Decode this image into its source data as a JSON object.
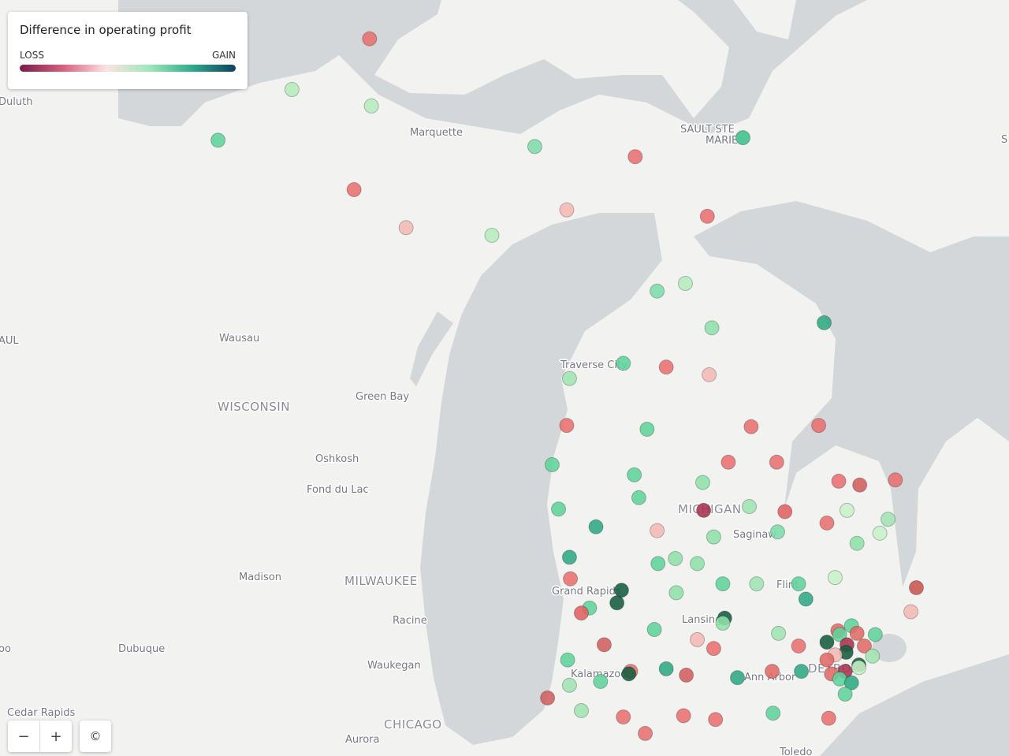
{
  "legend": {
    "title": "Difference in operating profit",
    "low": "LOSS",
    "high": "GAIN"
  },
  "controls": {
    "zoom_out": "−",
    "zoom_in": "+",
    "attribution": "©"
  },
  "labels": [
    "Duluth",
    "Marquette",
    "SAULT STE",
    "MARIE",
    "Wausau",
    "WISCONSIN",
    "Green Bay",
    "Oshkosh",
    "Fond du Lac",
    "Madison",
    "MILWAUKEE",
    "Racine",
    "Dubuque",
    "Waukegan",
    "CHICAGO",
    "Aurora",
    "Cedar Rapids",
    "Toledo",
    "Traverse City",
    "MICHIGAN",
    "Saginaw",
    "Flint",
    "Grand Rapids",
    "Lansing",
    "Kalamazoo",
    "Ann Arbor",
    "DETROIT",
    "AUL",
    "oo",
    "S"
  ],
  "markers": [
    [
      -88.44,
      47.27,
      "#e8706e"
    ],
    [
      -89.29,
      46.87,
      "#b4ecbc"
    ],
    [
      -88.42,
      46.74,
      "#b4ecbc"
    ],
    [
      -90.1,
      46.47,
      "#5fd39a"
    ],
    [
      -88.61,
      46.08,
      "#e8706e"
    ],
    [
      -88.04,
      45.78,
      "#f4b8b4"
    ],
    [
      -87.1,
      45.72,
      "#b4ecbc"
    ],
    [
      -86.63,
      46.42,
      "#7ddcaa"
    ],
    [
      -86.28,
      45.92,
      "#f4b8b4"
    ],
    [
      -85.53,
      46.34,
      "#e8706e"
    ],
    [
      -84.35,
      46.49,
      "#3cc08a"
    ],
    [
      -84.74,
      45.87,
      "#e8706e"
    ],
    [
      -85.29,
      45.28,
      "#7ddcaa"
    ],
    [
      -84.98,
      45.34,
      "#b4ecbc"
    ],
    [
      -84.69,
      44.99,
      "#8fe0a8"
    ],
    [
      -83.46,
      45.03,
      "#2fa884"
    ],
    [
      -85.66,
      44.71,
      "#5fd39a"
    ],
    [
      -85.19,
      44.68,
      "#e8706e"
    ],
    [
      -84.72,
      44.62,
      "#f4b8b4"
    ],
    [
      -86.25,
      44.59,
      "#9fe4b0"
    ],
    [
      -86.28,
      44.22,
      "#e8706e"
    ],
    [
      -85.4,
      44.19,
      "#5fd39a"
    ],
    [
      -84.26,
      44.21,
      "#e8706e"
    ],
    [
      -83.52,
      44.22,
      "#e8706e"
    ],
    [
      -86.44,
      43.91,
      "#5fd39a"
    ],
    [
      -85.54,
      43.83,
      "#5fd39a"
    ],
    [
      -84.51,
      43.93,
      "#e8706e"
    ],
    [
      -83.98,
      43.93,
      "#e8706e"
    ],
    [
      -84.79,
      43.77,
      "#8fe0a8"
    ],
    [
      -85.49,
      43.65,
      "#5fd39a"
    ],
    [
      -83.3,
      43.78,
      "#e8706e"
    ],
    [
      -83.07,
      43.75,
      "#d0605e"
    ],
    [
      -82.68,
      43.79,
      "#e8706e"
    ],
    [
      -86.37,
      43.56,
      "#5fd39a"
    ],
    [
      -84.78,
      43.55,
      "#a8324e"
    ],
    [
      -84.28,
      43.58,
      "#9fe4b0"
    ],
    [
      -83.89,
      43.54,
      "#e0605e"
    ],
    [
      -83.21,
      43.55,
      "#c8f0c8"
    ],
    [
      -85.96,
      43.42,
      "#2fa884"
    ],
    [
      -85.29,
      43.39,
      "#f4b8b4"
    ],
    [
      -84.67,
      43.34,
      "#8fe0a8"
    ],
    [
      -83.97,
      43.38,
      "#7ddcaa"
    ],
    [
      -83.43,
      43.45,
      "#e8706e"
    ],
    [
      -82.76,
      43.48,
      "#9fe4b0"
    ],
    [
      -82.85,
      43.37,
      "#c8f0c8"
    ],
    [
      -83.1,
      43.29,
      "#8fe0a8"
    ],
    [
      -86.25,
      43.18,
      "#2fa884"
    ],
    [
      -85.28,
      43.13,
      "#5fd39a"
    ],
    [
      -85.09,
      43.17,
      "#8fe0a8"
    ],
    [
      -84.85,
      43.13,
      "#8fe0a8"
    ],
    [
      -86.24,
      43.01,
      "#e8706e"
    ],
    [
      -84.57,
      42.97,
      "#5fd39a"
    ],
    [
      -84.2,
      42.97,
      "#9fe4b0"
    ],
    [
      -83.74,
      42.97,
      "#5fd39a"
    ],
    [
      -83.34,
      43.02,
      "#c8f0c8"
    ],
    [
      -82.45,
      42.94,
      "#c8544e"
    ],
    [
      -85.68,
      42.92,
      "#145c40"
    ],
    [
      -85.73,
      42.82,
      "#145c40"
    ],
    [
      -85.08,
      42.9,
      "#8fe0a8"
    ],
    [
      -83.66,
      42.85,
      "#2fa884"
    ],
    [
      -86.03,
      42.78,
      "#5fd39a"
    ],
    [
      -86.12,
      42.74,
      "#e06060"
    ],
    [
      -84.55,
      42.7,
      "#145c40"
    ],
    [
      -84.57,
      42.66,
      "#8fe0a8"
    ],
    [
      -82.51,
      42.75,
      "#f4b8b4"
    ],
    [
      -85.32,
      42.61,
      "#5fd39a"
    ],
    [
      -84.85,
      42.53,
      "#f4b8b4"
    ],
    [
      -84.67,
      42.46,
      "#e8706e"
    ],
    [
      -83.96,
      42.58,
      "#9fe4b0"
    ],
    [
      -85.87,
      42.49,
      "#d0605e"
    ],
    [
      -83.74,
      42.48,
      "#e8706e"
    ],
    [
      -86.27,
      42.37,
      "#5fd39a"
    ],
    [
      -85.19,
      42.3,
      "#2fa884"
    ],
    [
      -85.58,
      42.28,
      "#e8706e"
    ],
    [
      -85.6,
      42.26,
      "#145c40"
    ],
    [
      -84.97,
      42.25,
      "#d0605e"
    ],
    [
      -84.41,
      42.23,
      "#2fa884"
    ],
    [
      -84.03,
      42.28,
      "#e06a66"
    ],
    [
      -83.71,
      42.28,
      "#2fa884"
    ],
    [
      -86.25,
      42.17,
      "#9fe4b0"
    ],
    [
      -85.91,
      42.2,
      "#5fd39a"
    ],
    [
      -86.49,
      42.07,
      "#d0605e"
    ],
    [
      -86.12,
      41.97,
      "#9fe4b0"
    ],
    [
      -85.66,
      41.92,
      "#e8706e"
    ],
    [
      -85.0,
      41.93,
      "#e8706e"
    ],
    [
      -84.65,
      41.9,
      "#e8706e"
    ],
    [
      -84.02,
      41.95,
      "#5fd39a"
    ],
    [
      -85.42,
      41.79,
      "#e8706e"
    ],
    [
      -83.41,
      41.91,
      "#e8706e"
    ],
    [
      -83.31,
      42.6,
      "#e06a66"
    ],
    [
      -83.16,
      42.64,
      "#5fd39a"
    ],
    [
      -83.1,
      42.58,
      "#e06a66"
    ],
    [
      -83.29,
      42.57,
      "#5fd39a"
    ],
    [
      -82.9,
      42.57,
      "#5fd39a"
    ],
    [
      -83.43,
      42.51,
      "#145c40"
    ],
    [
      -83.21,
      42.49,
      "#a8324e"
    ],
    [
      -83.02,
      42.48,
      "#e06a66"
    ],
    [
      -83.22,
      42.43,
      "#145c40"
    ],
    [
      -83.34,
      42.41,
      "#f4b8b4"
    ],
    [
      -82.93,
      42.4,
      "#9fe4b0"
    ],
    [
      -83.43,
      42.37,
      "#e06a66"
    ],
    [
      -83.08,
      42.33,
      "#145c40"
    ],
    [
      -83.08,
      42.31,
      "#c8f0c8"
    ],
    [
      -83.23,
      42.28,
      "#a8324e"
    ],
    [
      -83.38,
      42.26,
      "#e06a66"
    ],
    [
      -83.29,
      42.22,
      "#5fd39a"
    ],
    [
      -83.16,
      42.19,
      "#2fa884"
    ],
    [
      -83.23,
      42.1,
      "#5fd39a"
    ]
  ]
}
